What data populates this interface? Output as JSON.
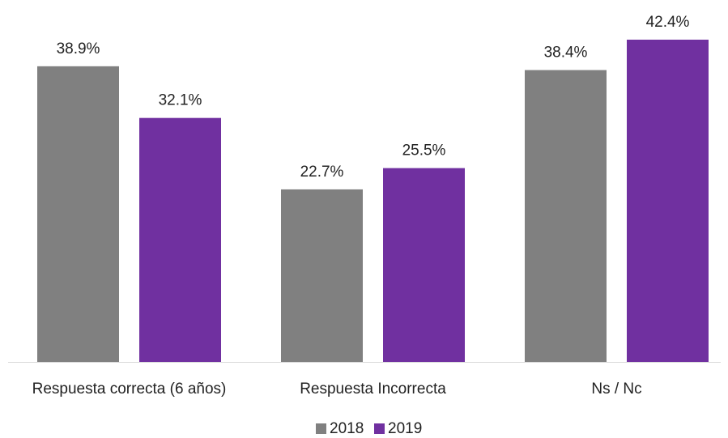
{
  "chart_data": {
    "type": "bar",
    "categories": [
      "Respuesta  correcta (6  años)",
      "Respuesta Incorrecta",
      "Ns / Nc"
    ],
    "series": [
      {
        "name": "2018",
        "color": "#808080",
        "values": [
          38.9,
          22.7,
          38.4
        ],
        "labels": [
          "38.9%",
          "22.7%",
          "38.4%"
        ]
      },
      {
        "name": "2019",
        "color": "#7030a0",
        "values": [
          32.1,
          25.5,
          42.4
        ],
        "labels": [
          "32.1%",
          "25.5%",
          "42.4%"
        ]
      }
    ],
    "ylim": [
      0,
      42.4
    ],
    "grid": false,
    "legend_position": "bottom",
    "axis_color": "#d9d9d9"
  }
}
